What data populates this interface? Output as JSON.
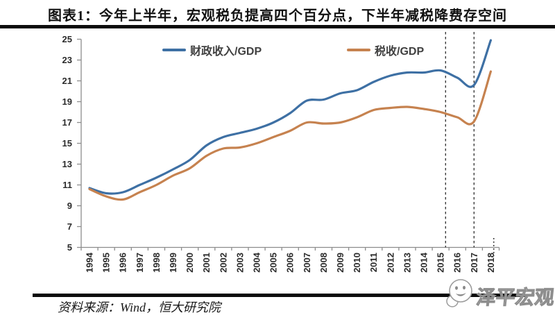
{
  "title": "图表1：今年上半年，宏观税负提高四个百分点，下半年减税降费存空间",
  "source_note": "资料来源：Wind，恒大研究院",
  "watermark": "泽平宏观",
  "chart_data": {
    "type": "line",
    "title": "图表1：今年上半年，宏观税负提高四个百分点，下半年减税降费存空间",
    "x": [
      1994,
      1995,
      1996,
      1997,
      1998,
      1999,
      2000,
      2001,
      2002,
      2003,
      2004,
      2005,
      2006,
      2007,
      2008,
      2009,
      2010,
      2011,
      2012,
      2013,
      2014,
      2015,
      2016,
      2017,
      2018
    ],
    "series": [
      {
        "name": "财政收入/GDP",
        "color": "#3E70A4",
        "values": [
          10.7,
          10.2,
          10.3,
          11.0,
          11.7,
          12.5,
          13.4,
          14.8,
          15.6,
          16.0,
          16.4,
          17.0,
          17.9,
          19.1,
          19.2,
          19.8,
          20.1,
          20.9,
          21.5,
          21.8,
          21.8,
          22.0,
          21.3,
          20.6,
          24.9
        ]
      },
      {
        "name": "税收/GDP",
        "color": "#C6824F",
        "values": [
          10.6,
          9.9,
          9.6,
          10.3,
          11.0,
          11.9,
          12.6,
          13.8,
          14.5,
          14.6,
          15.0,
          15.6,
          16.2,
          17.0,
          16.9,
          17.0,
          17.5,
          18.2,
          18.4,
          18.5,
          18.3,
          18.0,
          17.5,
          17.1,
          21.9
        ]
      }
    ],
    "ylim": [
      5,
      25
    ],
    "ytick_step": 2,
    "yticks": [
      5,
      7,
      9,
      11,
      13,
      15,
      17,
      19,
      21,
      23,
      25
    ],
    "grid": false,
    "legend_position": "top-inside",
    "annotations": {
      "dashed_vlines_x": [
        2015.3,
        2017
      ],
      "axis_break_dots_x": 2018.18
    },
    "axis_color": "#8C8C8C",
    "dash_color": "#3A3A3A",
    "tick_label_color": "#2b2b2b"
  }
}
